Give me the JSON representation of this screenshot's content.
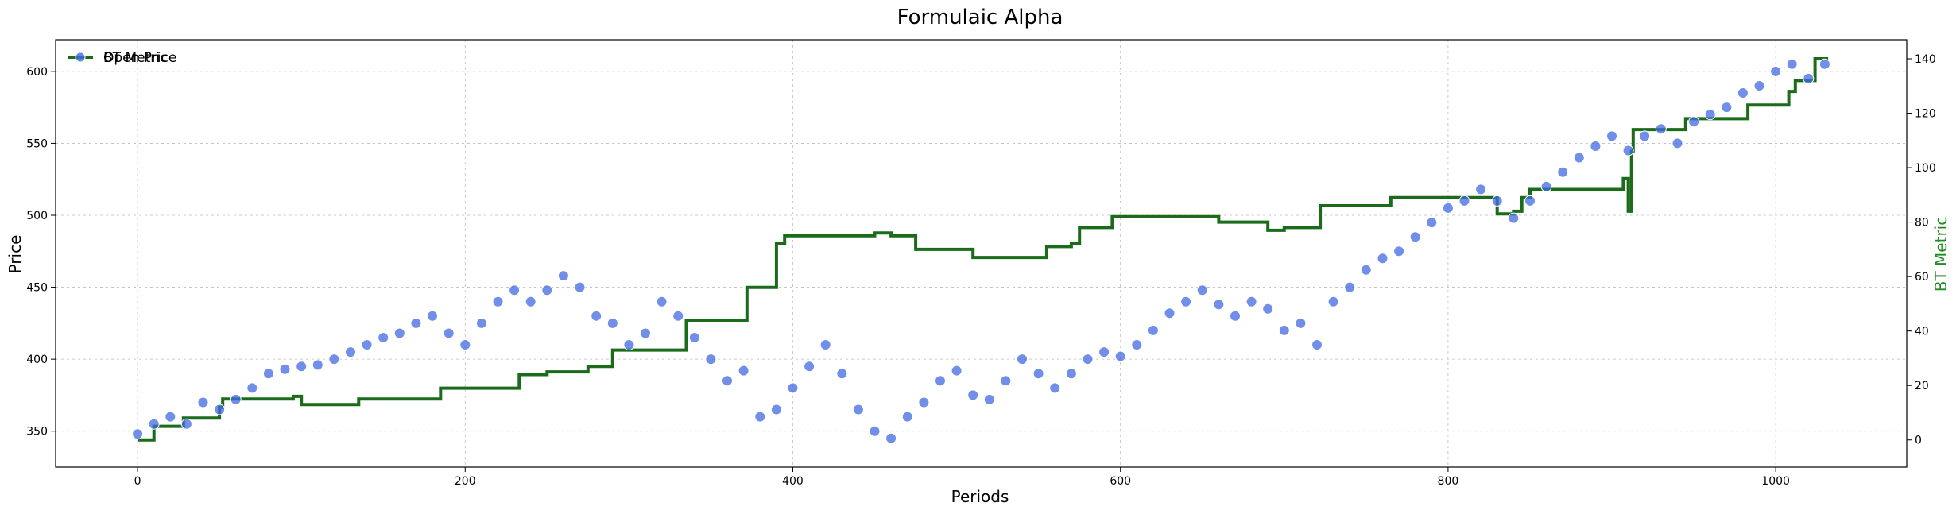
{
  "chart_data": {
    "type": "scatter",
    "title": "Formulaic Alpha",
    "xlabel": "Periods",
    "ylabel": "Price",
    "y2label": "BT Metric",
    "xlim": [
      -50,
      1080
    ],
    "ylim": [
      325,
      622
    ],
    "y2lim": [
      -10,
      147
    ],
    "grid": true,
    "legend": "top-left",
    "colors": {
      "price": "#4169e1",
      "metric": "#1a6b1a",
      "y2label": "#228b22"
    },
    "x_ticks": [
      0,
      200,
      400,
      600,
      800,
      1000
    ],
    "y_ticks": [
      350,
      400,
      450,
      500,
      550,
      600
    ],
    "y2_ticks": [
      0,
      20,
      40,
      60,
      80,
      100,
      120,
      140
    ],
    "series": [
      {
        "name": "Open Price",
        "type": "scatter",
        "axis": "left",
        "points": [
          [
            0,
            348
          ],
          [
            10,
            355
          ],
          [
            20,
            360
          ],
          [
            30,
            355
          ],
          [
            40,
            370
          ],
          [
            50,
            365
          ],
          [
            60,
            372
          ],
          [
            70,
            380
          ],
          [
            80,
            390
          ],
          [
            90,
            393
          ],
          [
            100,
            395
          ],
          [
            110,
            396
          ],
          [
            120,
            400
          ],
          [
            130,
            405
          ],
          [
            140,
            410
          ],
          [
            150,
            415
          ],
          [
            160,
            418
          ],
          [
            170,
            425
          ],
          [
            180,
            430
          ],
          [
            190,
            418
          ],
          [
            200,
            410
          ],
          [
            210,
            425
          ],
          [
            220,
            440
          ],
          [
            230,
            448
          ],
          [
            240,
            440
          ],
          [
            250,
            448
          ],
          [
            260,
            458
          ],
          [
            270,
            450
          ],
          [
            280,
            430
          ],
          [
            290,
            425
          ],
          [
            300,
            410
          ],
          [
            310,
            418
          ],
          [
            320,
            440
          ],
          [
            330,
            430
          ],
          [
            340,
            415
          ],
          [
            350,
            400
          ],
          [
            360,
            385
          ],
          [
            370,
            392
          ],
          [
            380,
            360
          ],
          [
            390,
            365
          ],
          [
            400,
            380
          ],
          [
            410,
            395
          ],
          [
            420,
            410
          ],
          [
            430,
            390
          ],
          [
            440,
            365
          ],
          [
            450,
            350
          ],
          [
            460,
            345
          ],
          [
            470,
            360
          ],
          [
            480,
            370
          ],
          [
            490,
            385
          ],
          [
            500,
            392
          ],
          [
            510,
            375
          ],
          [
            520,
            372
          ],
          [
            530,
            385
          ],
          [
            540,
            400
          ],
          [
            550,
            390
          ],
          [
            560,
            380
          ],
          [
            570,
            390
          ],
          [
            580,
            400
          ],
          [
            590,
            405
          ],
          [
            600,
            402
          ],
          [
            610,
            410
          ],
          [
            620,
            420
          ],
          [
            630,
            432
          ],
          [
            640,
            440
          ],
          [
            650,
            448
          ],
          [
            660,
            438
          ],
          [
            670,
            430
          ],
          [
            680,
            440
          ],
          [
            690,
            435
          ],
          [
            700,
            420
          ],
          [
            710,
            425
          ],
          [
            720,
            410
          ],
          [
            730,
            440
          ],
          [
            740,
            450
          ],
          [
            750,
            462
          ],
          [
            760,
            470
          ],
          [
            770,
            475
          ],
          [
            780,
            485
          ],
          [
            790,
            495
          ],
          [
            800,
            505
          ],
          [
            810,
            510
          ],
          [
            820,
            518
          ],
          [
            830,
            510
          ],
          [
            840,
            498
          ],
          [
            850,
            510
          ],
          [
            860,
            520
          ],
          [
            870,
            530
          ],
          [
            880,
            540
          ],
          [
            890,
            548
          ],
          [
            900,
            555
          ],
          [
            910,
            545
          ],
          [
            920,
            555
          ],
          [
            930,
            560
          ],
          [
            940,
            550
          ],
          [
            950,
            565
          ],
          [
            960,
            570
          ],
          [
            970,
            575
          ],
          [
            980,
            585
          ],
          [
            990,
            590
          ],
          [
            1000,
            600
          ],
          [
            1010,
            605
          ],
          [
            1020,
            595
          ],
          [
            1030,
            605
          ]
        ]
      },
      {
        "name": "BT Metric",
        "type": "step",
        "axis": "right",
        "points": [
          [
            0,
            0
          ],
          [
            8,
            0
          ],
          [
            10,
            5
          ],
          [
            25,
            5
          ],
          [
            28,
            8
          ],
          [
            40,
            8
          ],
          [
            50,
            12
          ],
          [
            52,
            15
          ],
          [
            80,
            15
          ],
          [
            95,
            16
          ],
          [
            100,
            13
          ],
          [
            130,
            13
          ],
          [
            135,
            15
          ],
          [
            150,
            15
          ],
          [
            180,
            15
          ],
          [
            185,
            19
          ],
          [
            230,
            19
          ],
          [
            233,
            24
          ],
          [
            245,
            24
          ],
          [
            250,
            25
          ],
          [
            270,
            25
          ],
          [
            275,
            27
          ],
          [
            283,
            27
          ],
          [
            290,
            33
          ],
          [
            330,
            33
          ],
          [
            335,
            44
          ],
          [
            370,
            44
          ],
          [
            372,
            56
          ],
          [
            385,
            56
          ],
          [
            390,
            72
          ],
          [
            395,
            75
          ],
          [
            420,
            75
          ],
          [
            450,
            76
          ],
          [
            460,
            75
          ],
          [
            470,
            75
          ],
          [
            475,
            70
          ],
          [
            505,
            70
          ],
          [
            510,
            67
          ],
          [
            535,
            67
          ],
          [
            550,
            67
          ],
          [
            555,
            71
          ],
          [
            570,
            72
          ],
          [
            575,
            78
          ],
          [
            590,
            78
          ],
          [
            595,
            82
          ],
          [
            650,
            82
          ],
          [
            660,
            80
          ],
          [
            685,
            80
          ],
          [
            690,
            77
          ],
          [
            700,
            78
          ],
          [
            720,
            78
          ],
          [
            722,
            86
          ],
          [
            762,
            86
          ],
          [
            765,
            89
          ],
          [
            825,
            89
          ],
          [
            830,
            83
          ],
          [
            840,
            84
          ],
          [
            845,
            89
          ],
          [
            850,
            92
          ],
          [
            880,
            92
          ],
          [
            905,
            92
          ],
          [
            907,
            96
          ],
          [
            910,
            84
          ],
          [
            912,
            106
          ],
          [
            913,
            114
          ],
          [
            943,
            114
          ],
          [
            945,
            118
          ],
          [
            980,
            118
          ],
          [
            983,
            123
          ],
          [
            1005,
            123
          ],
          [
            1008,
            128
          ],
          [
            1012,
            132
          ],
          [
            1023,
            132
          ],
          [
            1024,
            140
          ],
          [
            1032,
            140
          ]
        ]
      }
    ]
  }
}
